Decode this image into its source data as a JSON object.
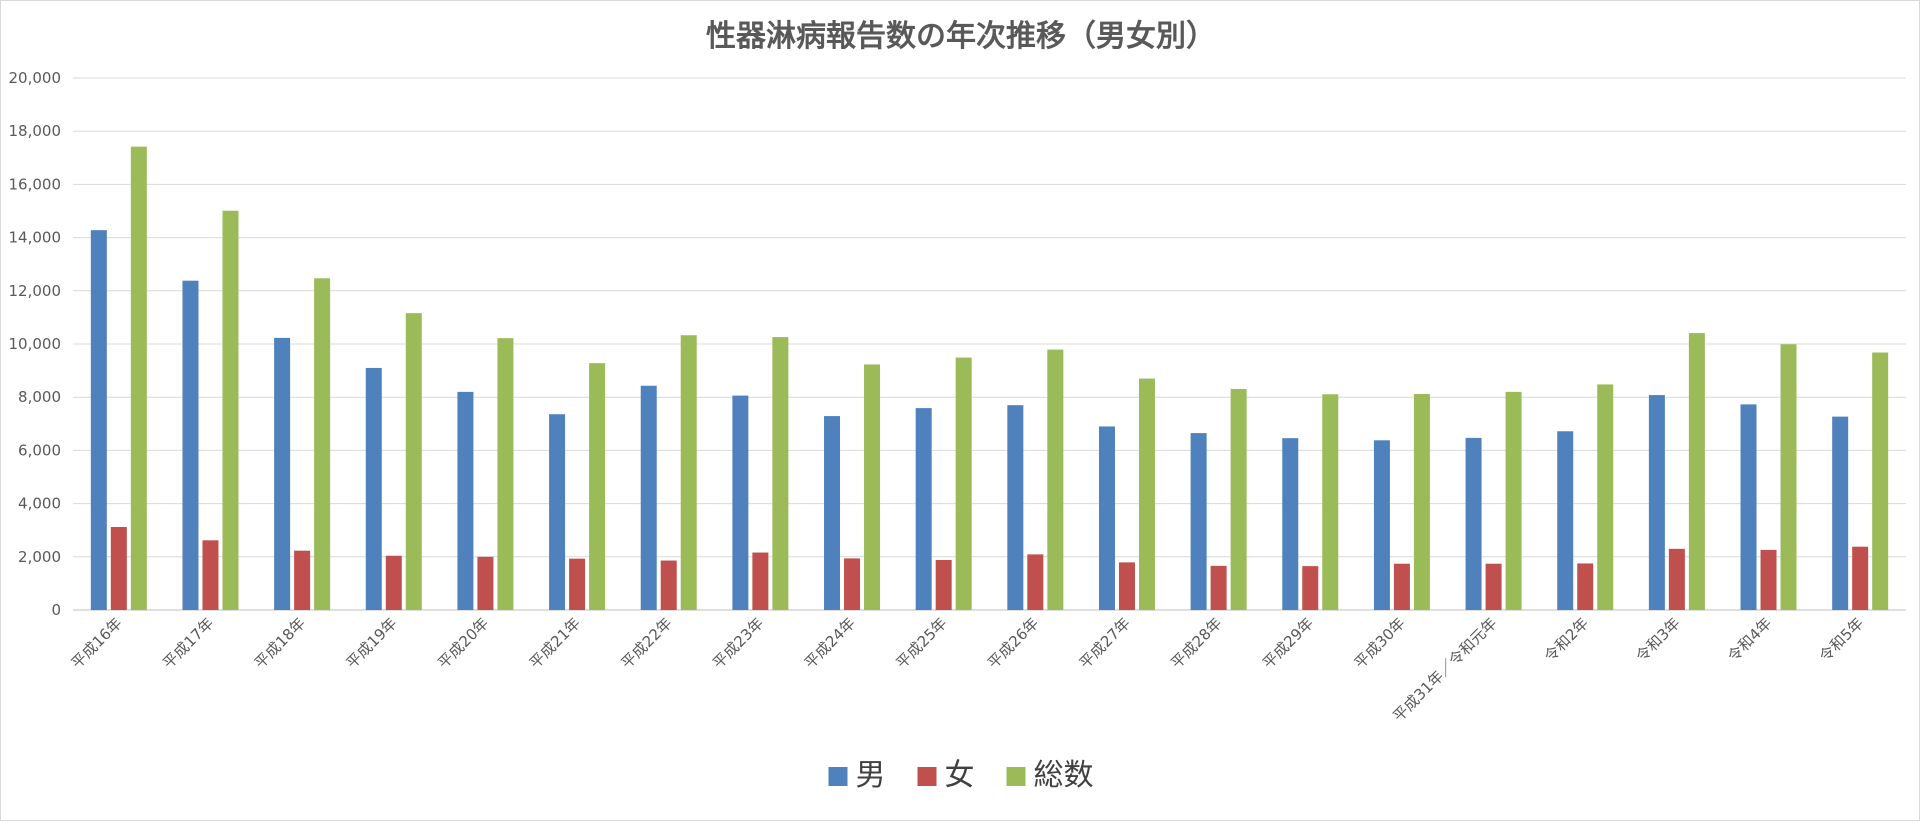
{
  "chart_data": {
    "type": "bar",
    "title": "性器淋病報告数の年次推移（男女別）",
    "categories": [
      "平成16年",
      "平成17年",
      "平成18年",
      "平成19年",
      "平成20年",
      "平成21年",
      "平成22年",
      "平成23年",
      "平成24年",
      "平成25年",
      "平成26年",
      "平成27年",
      "平成28年",
      "平成29年",
      "平成30年",
      "平成31年／令和元年",
      "令和2年",
      "令和3年",
      "令和4年",
      "令和5年"
    ],
    "series": [
      {
        "name": "男",
        "color": "#4f81bd",
        "values": [
          14280,
          12380,
          10230,
          9100,
          8200,
          7360,
          8430,
          8060,
          7290,
          7590,
          7700,
          6900,
          6650,
          6460,
          6380,
          6470,
          6720,
          8080,
          7730,
          7270
        ]
      },
      {
        "name": "女",
        "color": "#c0504d",
        "values": [
          3120,
          2620,
          2230,
          2040,
          2000,
          1930,
          1860,
          2160,
          1940,
          1880,
          2090,
          1790,
          1660,
          1650,
          1740,
          1740,
          1750,
          2300,
          2260,
          2380
        ]
      },
      {
        "name": "総数",
        "color": "#9bbb59",
        "values": [
          17420,
          15010,
          12470,
          11160,
          10220,
          9280,
          10330,
          10260,
          9230,
          9490,
          9790,
          8700,
          8310,
          8110,
          8120,
          8200,
          8480,
          10410,
          9990,
          9680
        ]
      }
    ],
    "yticks": [
      "0",
      "2,000",
      "4,000",
      "6,000",
      "8,000",
      "10,000",
      "12,000",
      "14,000",
      "16,000",
      "18,000",
      "20,000"
    ],
    "ylim": [
      0,
      20000
    ],
    "grid": true,
    "legend_position": "bottom"
  }
}
